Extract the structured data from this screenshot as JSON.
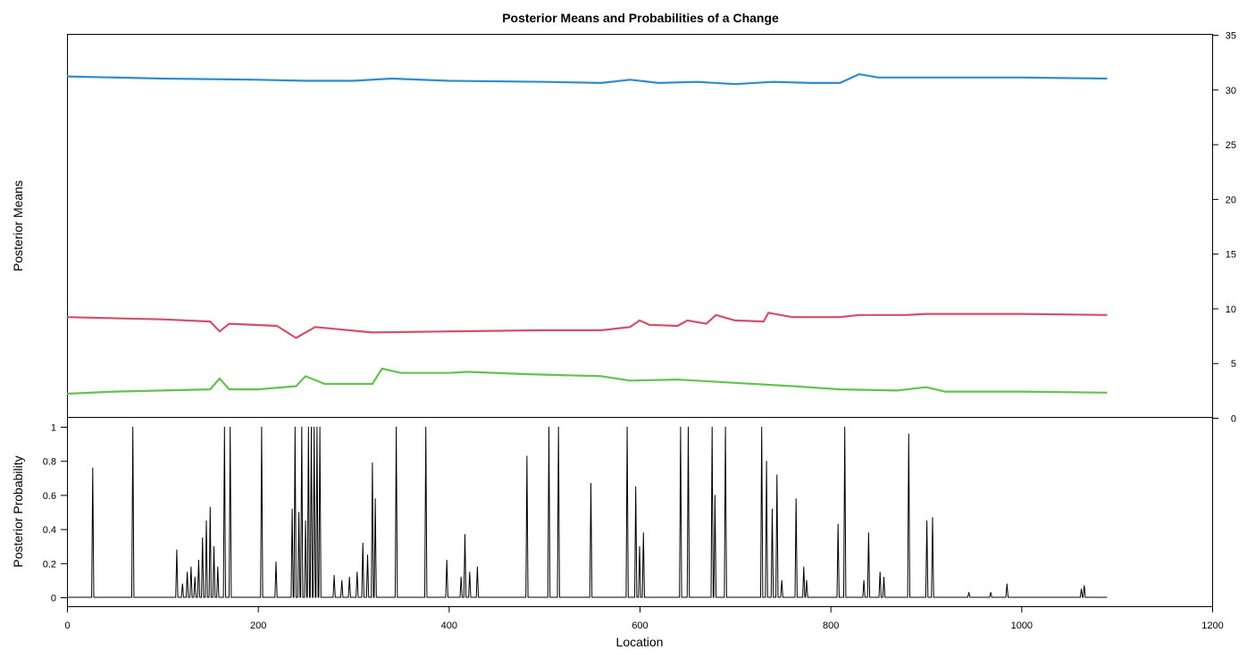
{
  "colors": {
    "series_1": "#2e8ccf",
    "series_2": "#d1506a",
    "series_3": "#62c34e",
    "probability": "#000000"
  },
  "chart_data": [
    {
      "type": "line",
      "title": "Posterior Means and Probabilities of a Change",
      "ylabel": "Posterior Means",
      "xlabel": "",
      "xlim": [
        0,
        1200
      ],
      "ylim": [
        0,
        35
      ],
      "y_axis_side": "right",
      "y_ticks": [
        "0",
        "5",
        "10",
        "15",
        "20",
        "25",
        "30",
        "35"
      ],
      "grid": false,
      "legend": "none",
      "series": [
        {
          "color": "#2e8ccf",
          "points": [
            [
              0,
              31.2
            ],
            [
              100,
              31.0
            ],
            [
              200,
              30.9
            ],
            [
              250,
              30.8
            ],
            [
              300,
              30.8
            ],
            [
              340,
              31.0
            ],
            [
              400,
              30.8
            ],
            [
              500,
              30.7
            ],
            [
              560,
              30.6
            ],
            [
              590,
              30.9
            ],
            [
              620,
              30.6
            ],
            [
              660,
              30.7
            ],
            [
              700,
              30.5
            ],
            [
              740,
              30.7
            ],
            [
              780,
              30.6
            ],
            [
              810,
              30.6
            ],
            [
              830,
              31.4
            ],
            [
              850,
              31.1
            ],
            [
              1000,
              31.1
            ],
            [
              1090,
              31.0
            ]
          ]
        },
        {
          "color": "#d1506a",
          "points": [
            [
              0,
              9.2
            ],
            [
              100,
              9.0
            ],
            [
              150,
              8.8
            ],
            [
              160,
              7.9
            ],
            [
              170,
              8.6
            ],
            [
              220,
              8.4
            ],
            [
              240,
              7.3
            ],
            [
              260,
              8.3
            ],
            [
              320,
              7.8
            ],
            [
              400,
              7.9
            ],
            [
              500,
              8.0
            ],
            [
              560,
              8.0
            ],
            [
              590,
              8.3
            ],
            [
              600,
              8.9
            ],
            [
              610,
              8.5
            ],
            [
              640,
              8.4
            ],
            [
              650,
              8.9
            ],
            [
              670,
              8.6
            ],
            [
              680,
              9.4
            ],
            [
              700,
              8.9
            ],
            [
              730,
              8.8
            ],
            [
              735,
              9.6
            ],
            [
              760,
              9.2
            ],
            [
              810,
              9.2
            ],
            [
              830,
              9.4
            ],
            [
              880,
              9.4
            ],
            [
              900,
              9.5
            ],
            [
              1000,
              9.5
            ],
            [
              1090,
              9.4
            ]
          ]
        },
        {
          "color": "#62c34e",
          "points": [
            [
              0,
              2.2
            ],
            [
              50,
              2.4
            ],
            [
              100,
              2.5
            ],
            [
              150,
              2.6
            ],
            [
              160,
              3.6
            ],
            [
              170,
              2.6
            ],
            [
              200,
              2.6
            ],
            [
              240,
              2.9
            ],
            [
              250,
              3.8
            ],
            [
              270,
              3.1
            ],
            [
              320,
              3.1
            ],
            [
              330,
              4.5
            ],
            [
              350,
              4.1
            ],
            [
              400,
              4.1
            ],
            [
              420,
              4.2
            ],
            [
              480,
              4.0
            ],
            [
              560,
              3.8
            ],
            [
              590,
              3.4
            ],
            [
              640,
              3.5
            ],
            [
              700,
              3.2
            ],
            [
              760,
              2.9
            ],
            [
              810,
              2.6
            ],
            [
              870,
              2.5
            ],
            [
              900,
              2.8
            ],
            [
              920,
              2.4
            ],
            [
              1000,
              2.4
            ],
            [
              1090,
              2.3
            ]
          ]
        }
      ]
    },
    {
      "type": "line",
      "xlabel": "Location",
      "ylabel": "Posterior Probability",
      "xlim": [
        0,
        1200
      ],
      "ylim": [
        0,
        1
      ],
      "x_ticks": [
        "0",
        "200",
        "400",
        "600",
        "800",
        "1000",
        "1200"
      ],
      "y_ticks": [
        "0",
        "0.2",
        "0.4",
        "0.6",
        "0.8",
        "1"
      ],
      "grid": false,
      "legend": "none",
      "series": [
        {
          "color": "#000000",
          "base": 0,
          "spikes": [
            [
              27,
              0.76
            ],
            [
              69,
              1.0
            ],
            [
              115,
              0.28
            ],
            [
              121,
              0.08
            ],
            [
              126,
              0.15
            ],
            [
              130,
              0.18
            ],
            [
              134,
              0.12
            ],
            [
              138,
              0.22
            ],
            [
              142,
              0.35
            ],
            [
              146,
              0.45
            ],
            [
              150,
              0.53
            ],
            [
              154,
              0.3
            ],
            [
              158,
              0.18
            ],
            [
              165,
              1.0
            ],
            [
              171,
              1.0
            ],
            [
              204,
              1.0
            ],
            [
              219,
              0.21
            ],
            [
              236,
              0.52
            ],
            [
              239,
              1.0
            ],
            [
              243,
              0.5
            ],
            [
              246,
              1.0
            ],
            [
              250,
              0.45
            ],
            [
              253,
              1.0
            ],
            [
              256,
              1.0
            ],
            [
              259,
              1.0
            ],
            [
              262,
              1.0
            ],
            [
              265,
              1.0
            ],
            [
              280,
              0.13
            ],
            [
              288,
              0.1
            ],
            [
              296,
              0.12
            ],
            [
              304,
              0.15
            ],
            [
              310,
              0.32
            ],
            [
              315,
              0.25
            ],
            [
              320,
              0.79
            ],
            [
              323,
              0.58
            ],
            [
              345,
              1.0
            ],
            [
              376,
              1.0
            ],
            [
              398,
              0.22
            ],
            [
              413,
              0.12
            ],
            [
              417,
              0.37
            ],
            [
              422,
              0.15
            ],
            [
              430,
              0.18
            ],
            [
              482,
              0.83
            ],
            [
              505,
              1.0
            ],
            [
              515,
              1.0
            ],
            [
              549,
              0.67
            ],
            [
              587,
              1.0
            ],
            [
              596,
              0.65
            ],
            [
              600,
              0.3
            ],
            [
              604,
              0.38
            ],
            [
              643,
              1.0
            ],
            [
              651,
              1.0
            ],
            [
              676,
              1.0
            ],
            [
              679,
              0.6
            ],
            [
              690,
              1.0
            ],
            [
              728,
              1.0
            ],
            [
              733,
              0.8
            ],
            [
              739,
              0.52
            ],
            [
              744,
              0.72
            ],
            [
              749,
              0.1
            ],
            [
              764,
              0.58
            ],
            [
              772,
              0.18
            ],
            [
              775,
              0.1
            ],
            [
              808,
              0.43
            ],
            [
              815,
              1.0
            ],
            [
              835,
              0.1
            ],
            [
              840,
              0.38
            ],
            [
              852,
              0.15
            ],
            [
              856,
              0.12
            ],
            [
              882,
              0.96
            ],
            [
              901,
              0.45
            ],
            [
              907,
              0.47
            ],
            [
              945,
              0.03
            ],
            [
              968,
              0.03
            ],
            [
              985,
              0.08
            ],
            [
              1063,
              0.05
            ],
            [
              1066,
              0.07
            ]
          ]
        }
      ]
    }
  ]
}
